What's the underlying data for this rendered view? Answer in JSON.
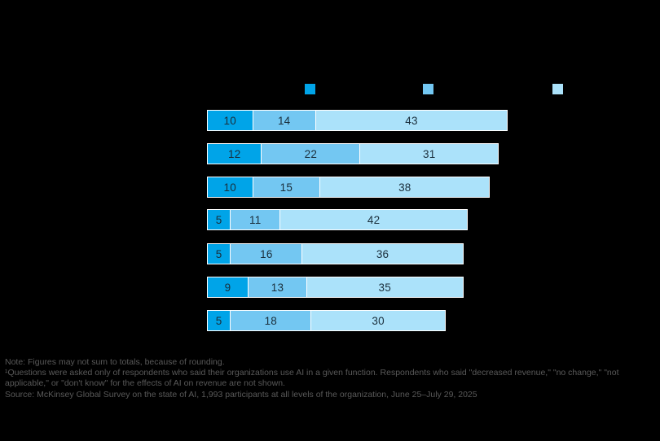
{
  "chart_data": {
    "type": "bar",
    "orientation": "horizontal",
    "stacked": true,
    "legend_position": "top",
    "grid": false,
    "categories": [
      "",
      "",
      "",
      "",
      "",
      "",
      ""
    ],
    "series": [
      {
        "name": "legend-series-1",
        "color": "#00A4E8",
        "values": [
          10,
          12,
          10,
          5,
          5,
          9,
          5
        ]
      },
      {
        "name": "legend-series-2",
        "color": "#73C7F2",
        "values": [
          14,
          22,
          15,
          11,
          16,
          13,
          18
        ]
      },
      {
        "name": "legend-series-3",
        "color": "#ABE2FA",
        "values": [
          43,
          31,
          38,
          42,
          36,
          35,
          30
        ]
      }
    ],
    "row_totals": [
      67,
      65,
      63,
      58,
      57,
      57,
      53
    ],
    "value_labels_shown": true
  },
  "colors": {
    "background": "#000000",
    "bar_outline": "#ffffff",
    "value_label": "#1a2e3b",
    "note_text": "#595959"
  },
  "notes": {
    "lines": [
      "Note: Figures may not sum to totals, because of rounding.",
      "¹Questions were asked only of respondents who said their organizations use AI in a given function. Respondents who said \"decreased revenue,\" \"no change,\" \"not",
      "applicable,\" or \"don't know\" for the effects of AI on revenue are not shown.",
      "Source: McKinsey Global Survey on the state of AI, 1,993 participants at all levels of the organization, June 25–July 29, 2025"
    ]
  }
}
